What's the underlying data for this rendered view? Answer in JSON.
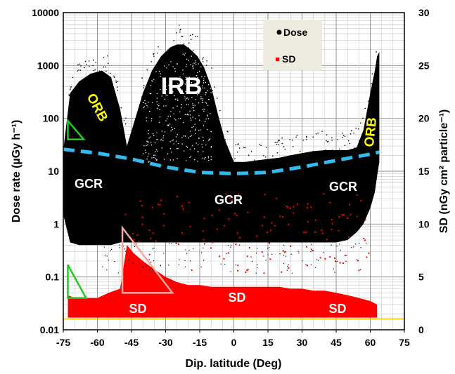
{
  "chart_data": {
    "type": "scatter",
    "xlabel": "Dip. latitude  (Deg)",
    "ylabel_left": "Dose rate  (µGy h⁻¹)",
    "ylabel_right": "SD (nGy cm² particle⁻¹)",
    "x_ticks": [
      "-75",
      "-60",
      "-45",
      "-30",
      "-15",
      "0",
      "15",
      "30",
      "45",
      "60",
      "75"
    ],
    "x_range": [
      -75,
      75
    ],
    "y_left_ticks": [
      "0.01",
      "0.1",
      "1",
      "10",
      "100",
      "1000",
      "10000"
    ],
    "y_left_range": [
      0.01,
      10000
    ],
    "y_left_scale": "log",
    "y_right_ticks": [
      "0",
      "5",
      "10",
      "15",
      "20",
      "25",
      "30"
    ],
    "y_right_range": [
      0,
      30
    ],
    "grid": true,
    "legend_position": "top-right",
    "series": [
      {
        "name": "Dose",
        "color": "#000000"
      },
      {
        "name": "SD",
        "color": "#ff0000"
      }
    ],
    "region_labels": [
      {
        "text": "IRB",
        "color": "#ffffff"
      },
      {
        "text": "ORB",
        "color": "#ffff00"
      },
      {
        "text": "ORB",
        "color": "#ffff00"
      },
      {
        "text": "GCR",
        "color": "#ffffff"
      },
      {
        "text": "GCR",
        "color": "#ffffff"
      },
      {
        "text": "GCR",
        "color": "#ffffff"
      },
      {
        "text": "SD",
        "color": "#ffffff"
      },
      {
        "text": "SD",
        "color": "#ffffff"
      },
      {
        "text": "SD",
        "color": "#ffffff"
      }
    ],
    "gcr_envelope": {
      "color": "#33bbee",
      "x": [
        -75,
        -60,
        -45,
        -30,
        -15,
        0,
        15,
        30,
        45,
        60,
        64
      ],
      "dose": [
        26,
        22,
        17,
        12,
        9.5,
        9,
        9.5,
        12,
        16,
        21,
        23
      ]
    },
    "sd_baseline": {
      "value": 0.016,
      "color": "#f0c000"
    },
    "dose_envelope": {
      "x": [
        -75,
        -72,
        -68,
        -63,
        -58,
        -54,
        -50,
        -47,
        -44,
        -40,
        -36,
        -32,
        -28,
        -25,
        -22,
        -19,
        -16,
        -13,
        -10,
        -7,
        -4,
        0,
        5,
        10,
        15,
        20,
        25,
        30,
        35,
        40,
        45,
        50,
        54,
        57,
        60,
        62,
        63,
        64
      ],
      "upper": [
        25,
        300,
        500,
        700,
        800,
        600,
        150,
        30,
        80,
        300,
        800,
        1500,
        2200,
        2500,
        2500,
        2000,
        1500,
        900,
        400,
        120,
        40,
        15,
        15,
        16,
        17,
        18,
        20,
        22,
        24,
        25,
        25,
        25,
        28,
        60,
        300,
        800,
        1500,
        1800
      ],
      "lower": [
        1.5,
        0.45,
        0.4,
        0.4,
        0.4,
        0.4,
        0.45,
        0.45,
        0.45,
        0.45,
        0.45,
        0.45,
        0.45,
        0.45,
        0.45,
        0.45,
        0.45,
        0.45,
        0.45,
        0.45,
        0.45,
        0.45,
        0.45,
        0.45,
        0.45,
        0.45,
        0.45,
        0.45,
        0.45,
        0.45,
        0.45,
        0.5,
        0.7,
        1.0,
        2.0,
        4.0,
        8.0,
        15
      ]
    },
    "sd_band": {
      "x": [
        -73,
        -70,
        -65,
        -60,
        -55,
        -50,
        -47,
        -44,
        -40,
        -35,
        -30,
        -25,
        -20,
        -15,
        -10,
        -5,
        0,
        5,
        10,
        15,
        20,
        25,
        30,
        35,
        40,
        45,
        50,
        55,
        60,
        63
      ],
      "upper": [
        0.045,
        0.04,
        0.04,
        0.04,
        0.05,
        0.06,
        0.4,
        0.28,
        0.2,
        0.14,
        0.1,
        0.08,
        0.07,
        0.07,
        0.065,
        0.065,
        0.065,
        0.065,
        0.065,
        0.065,
        0.065,
        0.06,
        0.06,
        0.055,
        0.055,
        0.05,
        0.045,
        0.04,
        0.035,
        0.03
      ],
      "lower": [
        0.017,
        0.017,
        0.017,
        0.017,
        0.017,
        0.017,
        0.017,
        0.017,
        0.017,
        0.017,
        0.017,
        0.017,
        0.017,
        0.017,
        0.017,
        0.017,
        0.017,
        0.017,
        0.017,
        0.017,
        0.017,
        0.017,
        0.017,
        0.017,
        0.017,
        0.017,
        0.017,
        0.017,
        0.017,
        0.017
      ]
    }
  }
}
